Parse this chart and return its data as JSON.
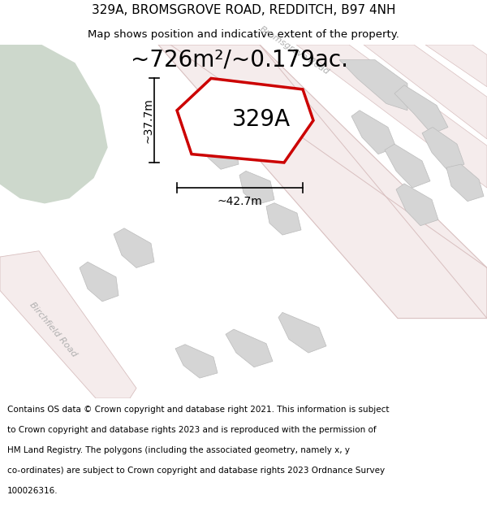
{
  "title_line1": "329A, BROMSGROVE ROAD, REDDITCH, B97 4NH",
  "title_line2": "Map shows position and indicative extent of the property.",
  "area_label": "~726m²/~0.179ac.",
  "property_label": "329A",
  "width_label": "~42.7m",
  "height_label": "~37.7m",
  "footer_lines": [
    "Contains OS data © Crown copyright and database right 2021. This information is subject",
    "to Crown copyright and database rights 2023 and is reproduced with the permission of",
    "HM Land Registry. The polygons (including the associated geometry, namely x, y",
    "co-ordinates) are subject to Crown copyright and database rights 2023 Ordnance Survey",
    "100026316."
  ],
  "bg_white": "#ffffff",
  "map_bg": "#f2f2ee",
  "road_fill": "#f5ecec",
  "road_stroke": "#d8bfbf",
  "building_fill": "#d5d5d5",
  "building_stroke": "#bbbbbb",
  "green_fill": "#cdd8cc",
  "property_fill": "#ffffff",
  "property_stroke": "#cc0000",
  "road_label_color": "#b0b0b0",
  "dim_color": "#000000",
  "title_fontsize": 11,
  "subtitle_fontsize": 9.5,
  "area_fontsize": 20,
  "property_label_fontsize": 20,
  "dim_fontsize": 10,
  "road_label_fontsize": 8,
  "footer_fontsize": 7.5
}
